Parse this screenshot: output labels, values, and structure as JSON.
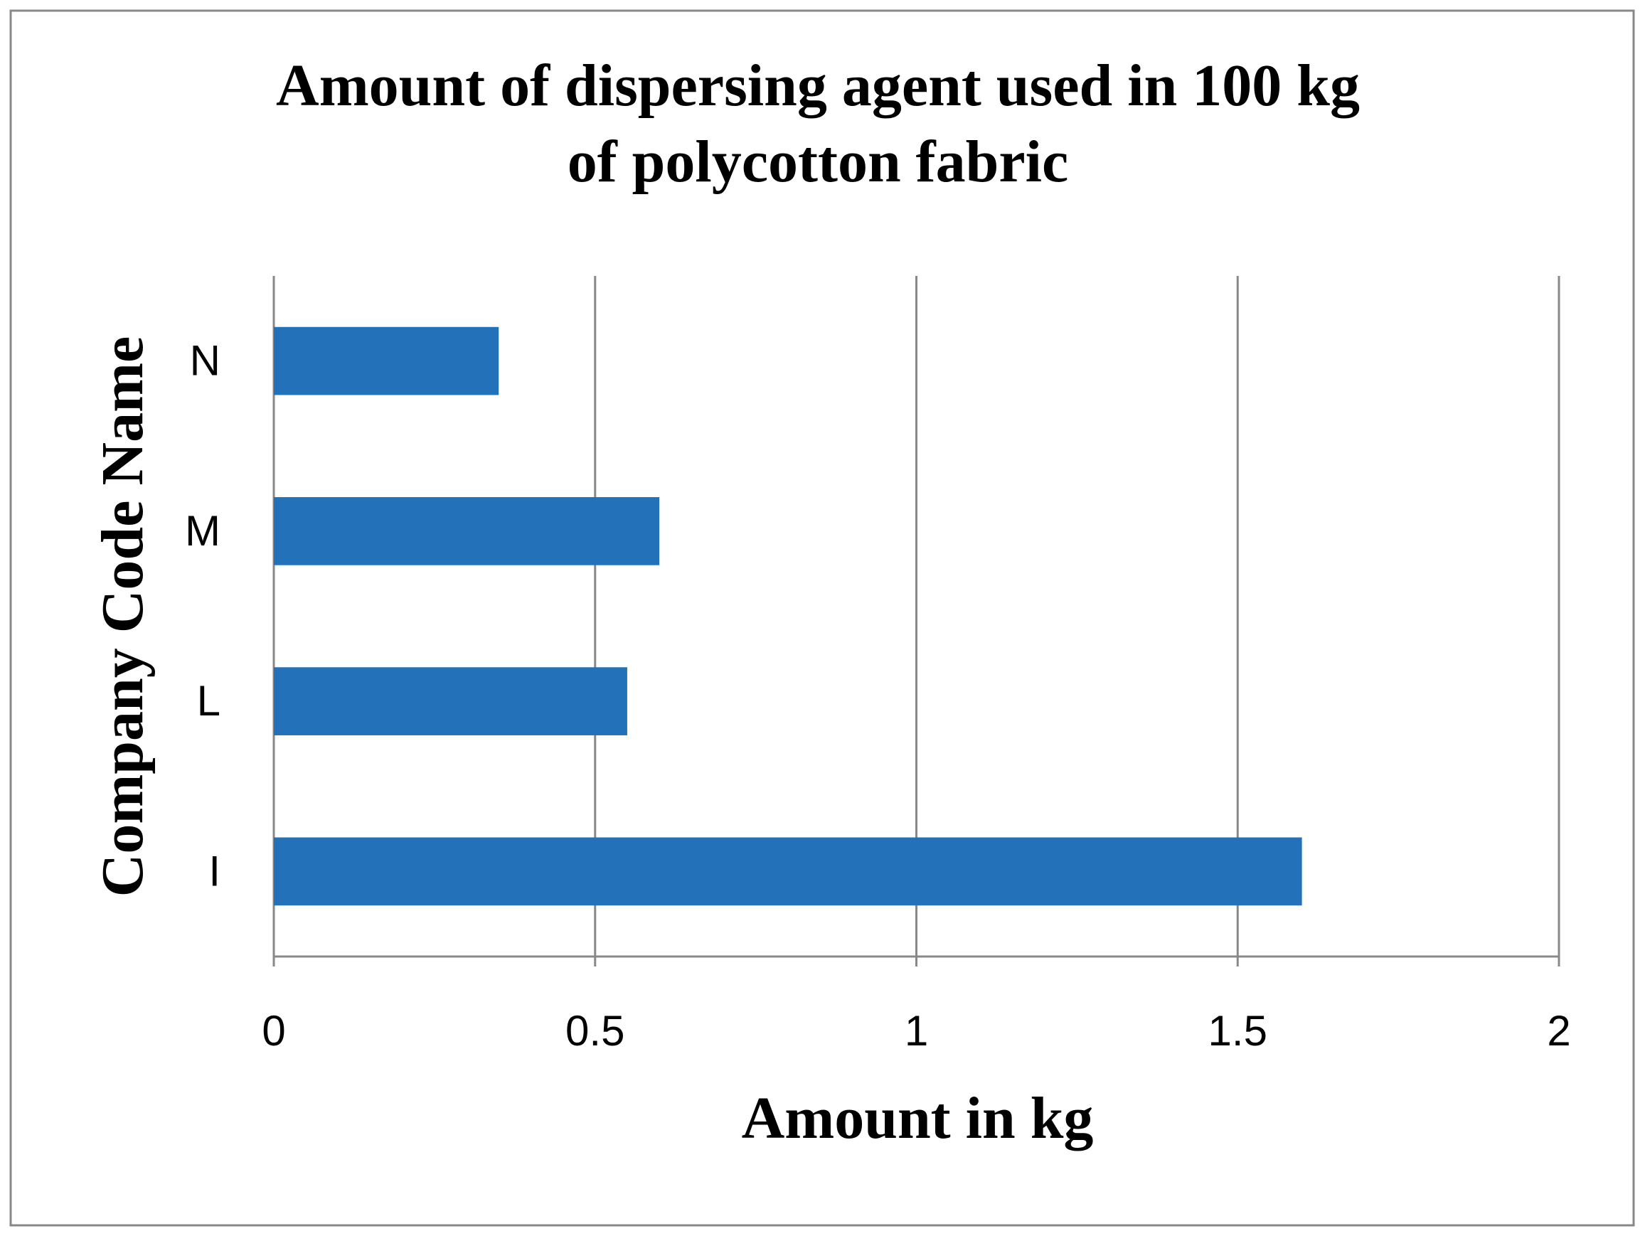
{
  "chart_data": {
    "type": "hbar",
    "title": [
      "Amount of dispersing agent used in 100 kg",
      "of polycotton fabric"
    ],
    "x_label": "Amount in kg",
    "y_label": "Company Code Name",
    "categories": [
      "I",
      "L",
      "M",
      "N"
    ],
    "values": [
      1.6,
      0.55,
      0.6,
      0.35
    ],
    "color": "#2372b9",
    "xlim": [
      0,
      2
    ],
    "xticks": [
      0,
      0.5,
      1,
      1.5,
      2
    ],
    "grid": true
  }
}
